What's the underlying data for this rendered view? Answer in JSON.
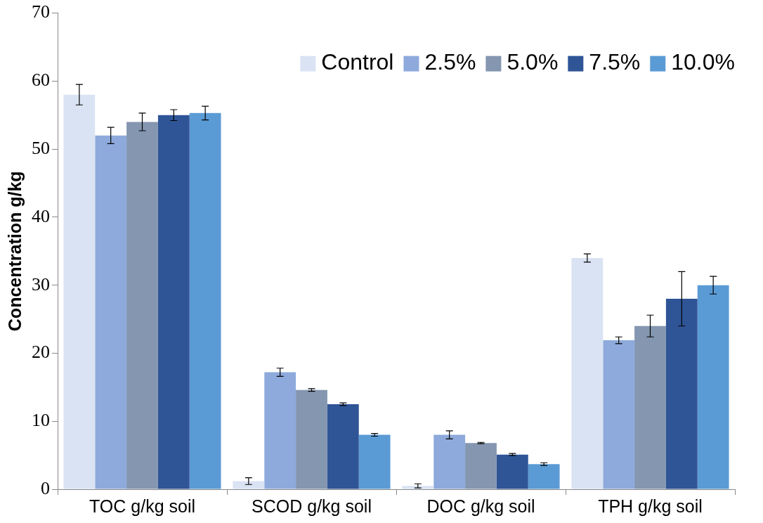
{
  "chart_data": {
    "type": "bar",
    "ylabel": "Concentration g/kg",
    "categories": [
      "TOC g/kg soil",
      "SCOD g/kg soil",
      "DOC g/kg soil",
      "TPH g/kg soil"
    ],
    "series": [
      {
        "name": "Control",
        "color": "#dae3f3",
        "values": [
          58,
          1.2,
          0.5,
          34
        ],
        "errors": [
          1.5,
          0.5,
          0.3,
          0.6
        ]
      },
      {
        "name": "2.5%",
        "color": "#8eaadc",
        "values": [
          52,
          17.2,
          8,
          21.9
        ],
        "errors": [
          1.2,
          0.6,
          0.6,
          0.5
        ]
      },
      {
        "name": "5.0%",
        "color": "#8496b0",
        "values": [
          54,
          14.6,
          6.8,
          24
        ],
        "errors": [
          1.3,
          0.2,
          0.1,
          1.6
        ]
      },
      {
        "name": "7.5%",
        "color": "#2f5597",
        "values": [
          55,
          12.5,
          5.1,
          28
        ],
        "errors": [
          0.8,
          0.2,
          0.15,
          4
        ]
      },
      {
        "name": "10.0%",
        "color": "#5b9bd5",
        "values": [
          55.3,
          8,
          3.7,
          30
        ],
        "errors": [
          1,
          0.2,
          0.2,
          1.3
        ]
      }
    ],
    "ylim": [
      0,
      70
    ],
    "yticks": [
      0,
      10,
      20,
      30,
      40,
      50,
      60,
      70
    ],
    "grid": false,
    "legend": "top right"
  }
}
